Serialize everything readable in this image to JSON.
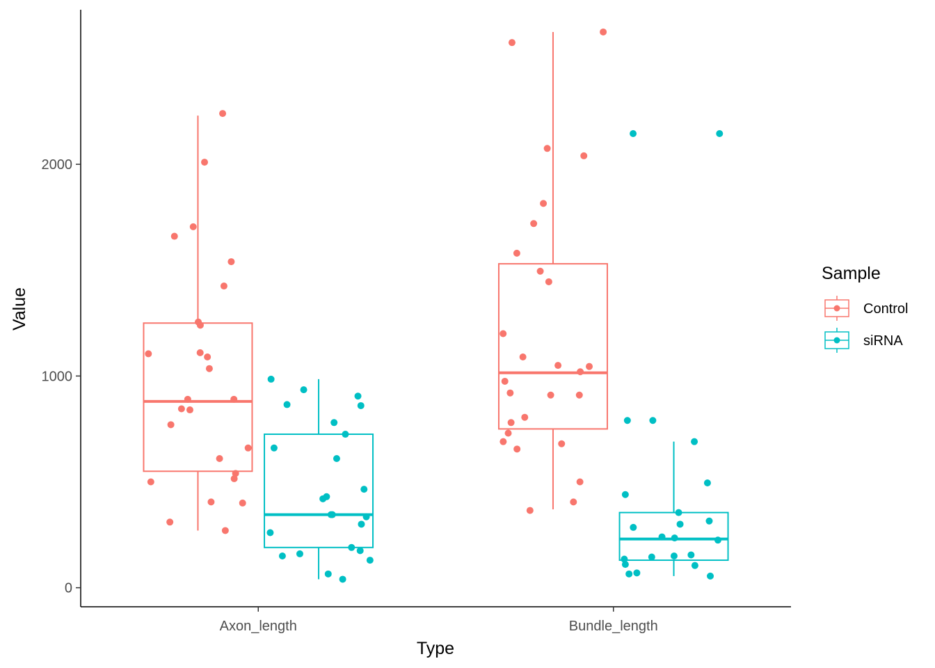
{
  "chart_data": {
    "type": "box",
    "title": "",
    "xlabel": "Type",
    "ylabel": "Value",
    "categories": [
      "Axon_length",
      "Bundle_length"
    ],
    "ylim": [
      -90,
      2730
    ],
    "yticks": [
      0,
      1000,
      2000
    ],
    "ytick_labels": [
      "0",
      "1000",
      "2000"
    ],
    "grid": false,
    "legend": {
      "title": "Sample",
      "position": "right"
    },
    "series": [
      {
        "name": "Control",
        "color": "#F8766D",
        "boxes": [
          {
            "category": "Axon_length",
            "min": 270,
            "q1": 550,
            "median": 880,
            "q3": 1250,
            "max": 2230
          },
          {
            "category": "Bundle_length",
            "min": 370,
            "q1": 750,
            "median": 1015,
            "q3": 1530,
            "max": 2625
          }
        ],
        "points": [
          {
            "category": "Axon_length",
            "values": [
              2240,
              2010,
              1705,
              1660,
              1540,
              1425,
              1255,
              1240,
              1110,
              1105,
              1090,
              1035,
              890,
              890,
              845,
              840,
              770,
              660,
              610,
              540,
              515,
              500,
              405,
              400,
              310,
              270
            ]
          },
          {
            "category": "Bundle_length",
            "values": [
              2625,
              2575,
              2075,
              2040,
              1815,
              1720,
              1580,
              1495,
              1445,
              1200,
              1090,
              1050,
              1045,
              1020,
              975,
              920,
              910,
              910,
              805,
              780,
              730,
              690,
              680,
              655,
              500,
              405,
              365
            ]
          }
        ]
      },
      {
        "name": "siRNA",
        "color": "#00BFC4",
        "boxes": [
          {
            "category": "Axon_length",
            "min": 40,
            "q1": 190,
            "median": 345,
            "q3": 725,
            "max": 985
          },
          {
            "category": "Bundle_length",
            "min": 55,
            "q1": 130,
            "median": 230,
            "q3": 355,
            "max": 690
          }
        ],
        "points": [
          {
            "category": "Axon_length",
            "values": [
              985,
              935,
              905,
              865,
              860,
              780,
              725,
              660,
              610,
              465,
              430,
              420,
              345,
              345,
              335,
              300,
              260,
              190,
              175,
              160,
              150,
              130,
              65,
              40
            ]
          },
          {
            "category": "Bundle_length",
            "values": [
              2145,
              2145,
              790,
              790,
              690,
              495,
              440,
              355,
              315,
              300,
              285,
              240,
              235,
              225,
              155,
              150,
              145,
              135,
              110,
              105,
              70,
              65,
              55
            ]
          }
        ]
      }
    ]
  }
}
